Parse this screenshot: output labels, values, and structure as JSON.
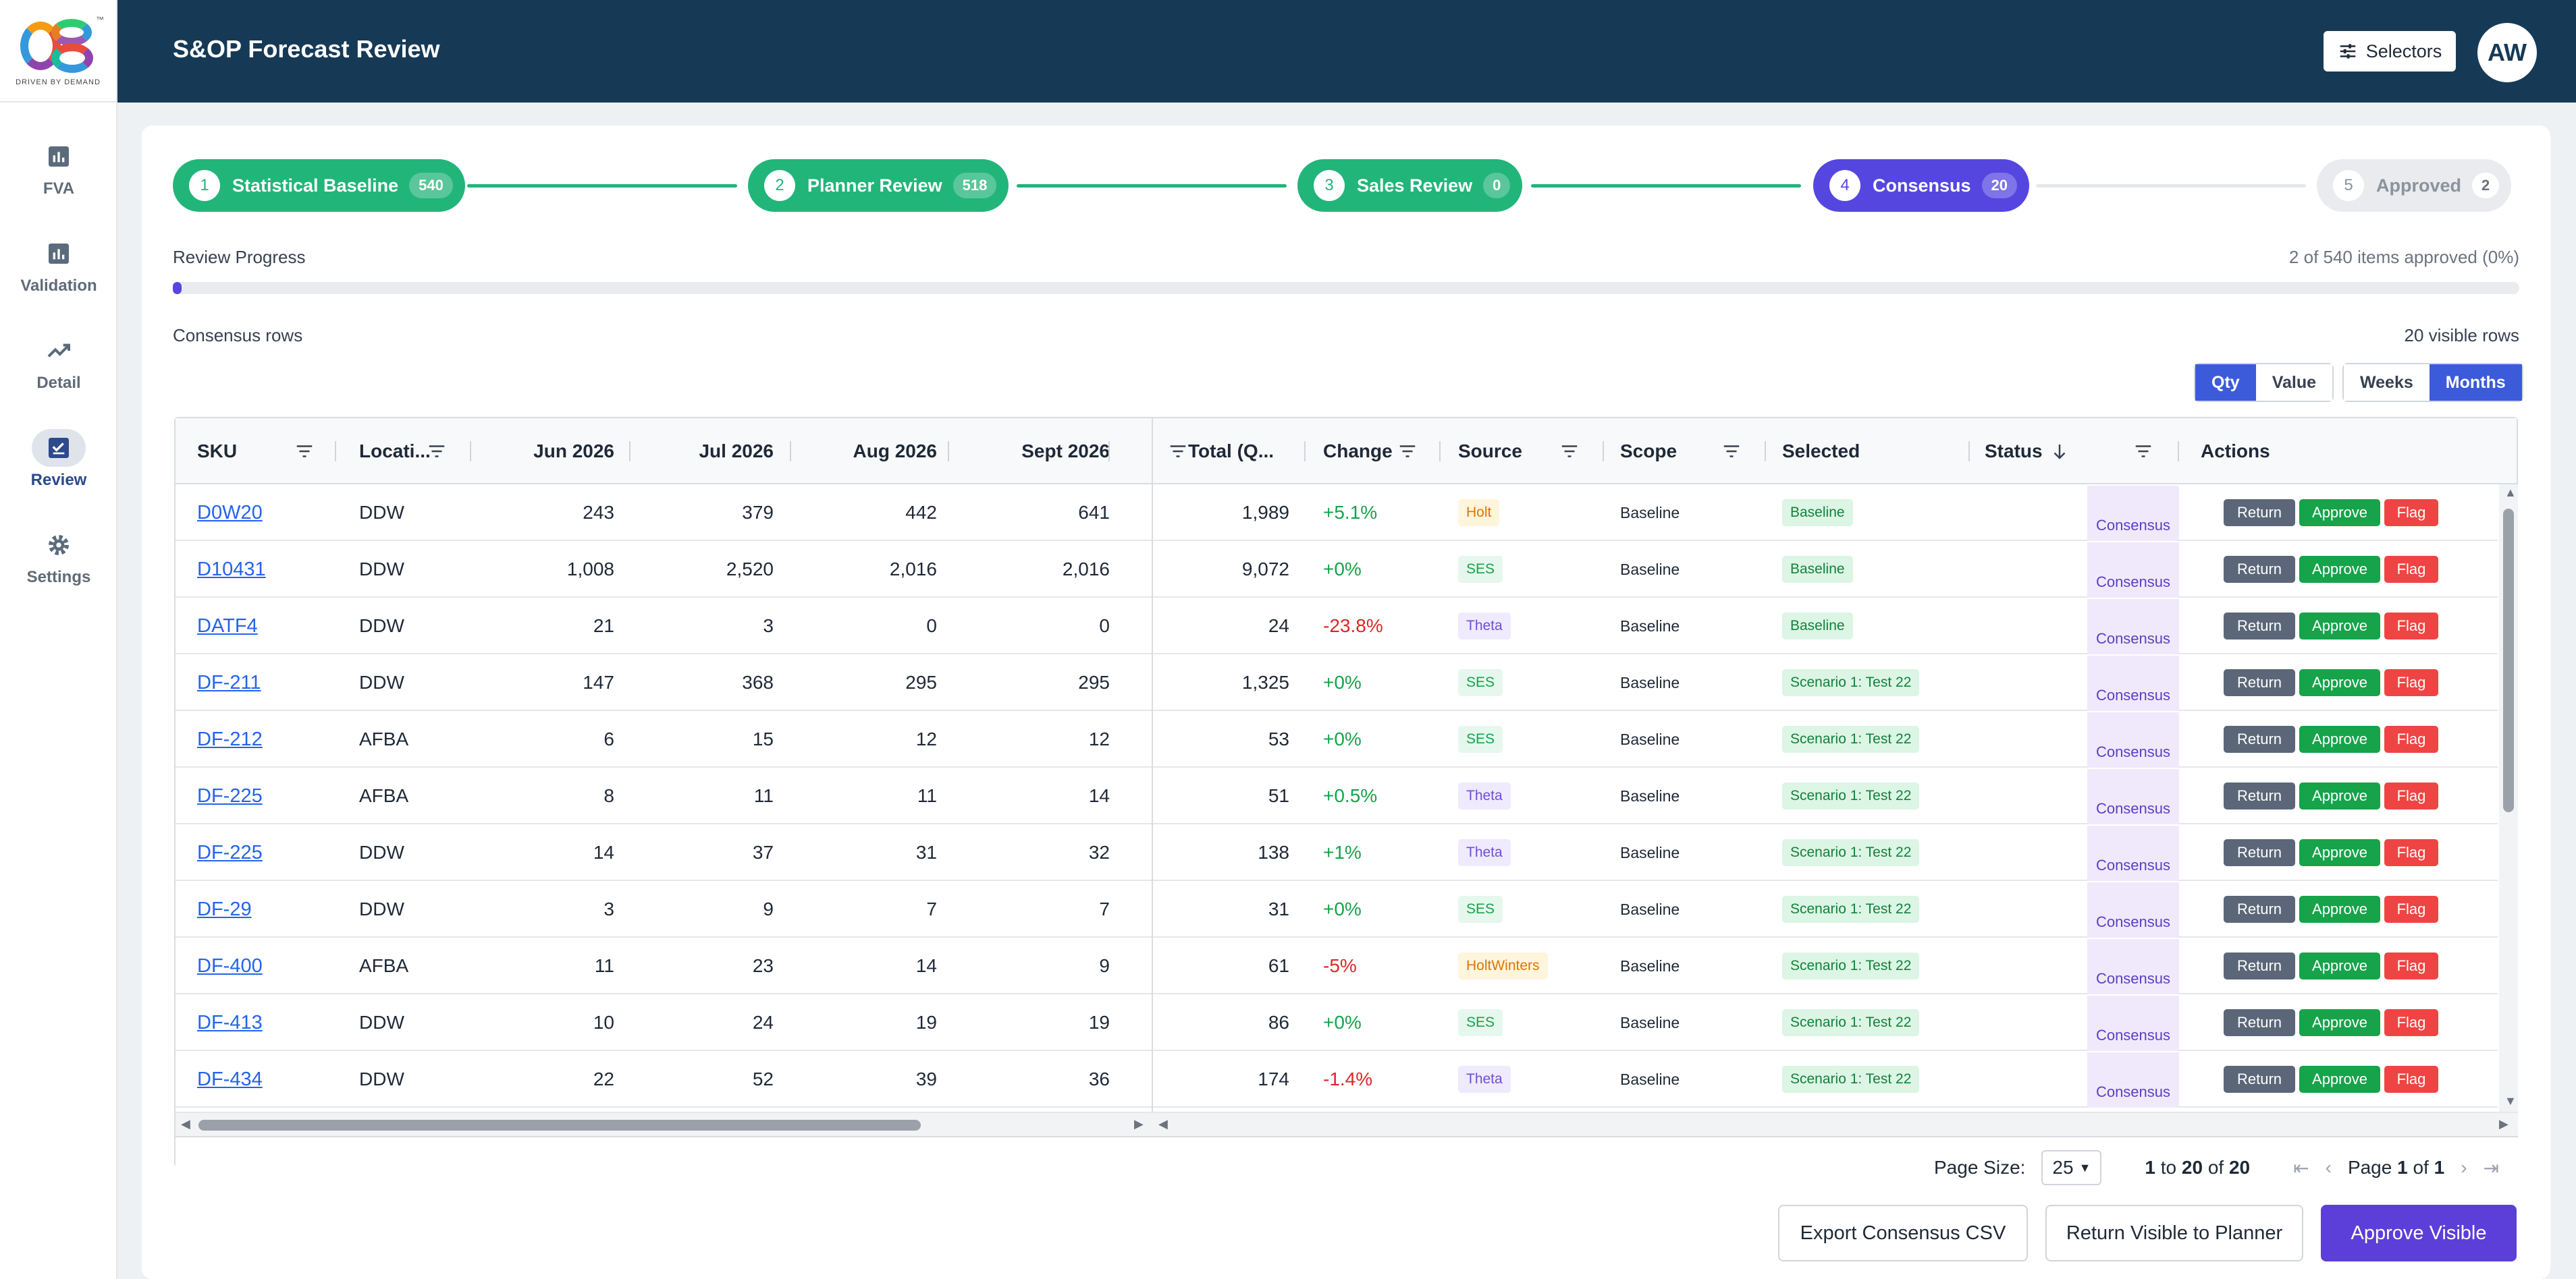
{
  "brand": {
    "logo_text": "O8",
    "tagline": "DRIVEN BY DEMAND"
  },
  "sidebar": {
    "items": [
      {
        "label": "FVA",
        "icon": "bar-chart-icon",
        "active": false
      },
      {
        "label": "Validation",
        "icon": "bar-chart-icon",
        "active": false
      },
      {
        "label": "Detail",
        "icon": "trend-line-icon",
        "active": false
      },
      {
        "label": "Review",
        "icon": "review-checklist-icon",
        "active": true
      },
      {
        "label": "Settings",
        "icon": "gear-icon",
        "active": false
      }
    ]
  },
  "header": {
    "title": "S&OP Forecast Review",
    "selectors_label": "Selectors",
    "avatar_initials": "AW"
  },
  "stepper": {
    "steps": [
      {
        "num": "1",
        "label": "Statistical Baseline",
        "count": "540",
        "state": "done"
      },
      {
        "num": "2",
        "label": "Planner Review",
        "count": "518",
        "state": "done"
      },
      {
        "num": "3",
        "label": "Sales Review",
        "count": "0",
        "state": "done"
      },
      {
        "num": "4",
        "label": "Consensus",
        "count": "20",
        "state": "active"
      },
      {
        "num": "5",
        "label": "Approved",
        "count": "2",
        "state": "pending"
      }
    ]
  },
  "progress": {
    "label": "Review Progress",
    "text": "2 of 540 items approved (0%)",
    "fraction": 0.0037
  },
  "table_meta": {
    "title": "Consensus rows",
    "visible_rows": "20 visible rows"
  },
  "toggles": {
    "qty": "Qty",
    "value": "Value",
    "weeks": "Weeks",
    "months": "Months"
  },
  "grid": {
    "columns": [
      "SKU",
      "Locati...",
      "Jun 2026",
      "Jul 2026",
      "Aug 2026",
      "Sept 2026",
      "Total (Q...",
      "Change",
      "Source",
      "Scope",
      "Selected",
      "Status",
      "Actions"
    ],
    "rows": [
      [
        "D0W20",
        "DDW",
        "243",
        "379",
        "442",
        "641",
        "1,989",
        "+5.1%",
        "Holt",
        "Baseline",
        "Baseline",
        "Consensus"
      ],
      [
        "D10431",
        "DDW",
        "1,008",
        "2,520",
        "2,016",
        "2,016",
        "9,072",
        "+0%",
        "SES",
        "Baseline",
        "Baseline",
        "Consensus"
      ],
      [
        "DATF4",
        "DDW",
        "21",
        "3",
        "0",
        "0",
        "24",
        "-23.8%",
        "Theta",
        "Baseline",
        "Baseline",
        "Consensus"
      ],
      [
        "DF-211",
        "DDW",
        "147",
        "368",
        "295",
        "295",
        "1,325",
        "+0%",
        "SES",
        "Baseline",
        "Scenario 1: Test 22",
        "Consensus"
      ],
      [
        "DF-212",
        "AFBA",
        "6",
        "15",
        "12",
        "12",
        "53",
        "+0%",
        "SES",
        "Baseline",
        "Scenario 1: Test 22",
        "Consensus"
      ],
      [
        "DF-225",
        "AFBA",
        "8",
        "11",
        "11",
        "14",
        "51",
        "+0.5%",
        "Theta",
        "Baseline",
        "Scenario 1: Test 22",
        "Consensus"
      ],
      [
        "DF-225",
        "DDW",
        "14",
        "37",
        "31",
        "32",
        "138",
        "+1%",
        "Theta",
        "Baseline",
        "Scenario 1: Test 22",
        "Consensus"
      ],
      [
        "DF-29",
        "DDW",
        "3",
        "9",
        "7",
        "7",
        "31",
        "+0%",
        "SES",
        "Baseline",
        "Scenario 1: Test 22",
        "Consensus"
      ],
      [
        "DF-400",
        "AFBA",
        "11",
        "23",
        "14",
        "9",
        "61",
        "-5%",
        "HoltWinters",
        "Baseline",
        "Scenario 1: Test 22",
        "Consensus"
      ],
      [
        "DF-413",
        "DDW",
        "10",
        "24",
        "19",
        "19",
        "86",
        "+0%",
        "SES",
        "Baseline",
        "Scenario 1: Test 22",
        "Consensus"
      ],
      [
        "DF-434",
        "DDW",
        "22",
        "52",
        "39",
        "36",
        "174",
        "-1.4%",
        "Theta",
        "Baseline",
        "Scenario 1: Test 22",
        "Consensus"
      ]
    ],
    "actions": {
      "return": "Return",
      "approve": "Approve",
      "flag": "Flag"
    }
  },
  "pager": {
    "page_size_label": "Page Size:",
    "page_size": "25",
    "range_from": "1",
    "range_to": "20",
    "range_total": "20",
    "page_word": "Page",
    "page_current": "1",
    "page_total": "1",
    "to_word": "to",
    "of_word": "of"
  },
  "footer": {
    "export": "Export Consensus CSV",
    "return_visible": "Return Visible to Planner",
    "approve_visible": "Approve Visible"
  },
  "colors": {
    "header_bg": "#163a56",
    "done": "#22b57a",
    "active": "#5546e0",
    "primary": "#5b3fd8"
  }
}
